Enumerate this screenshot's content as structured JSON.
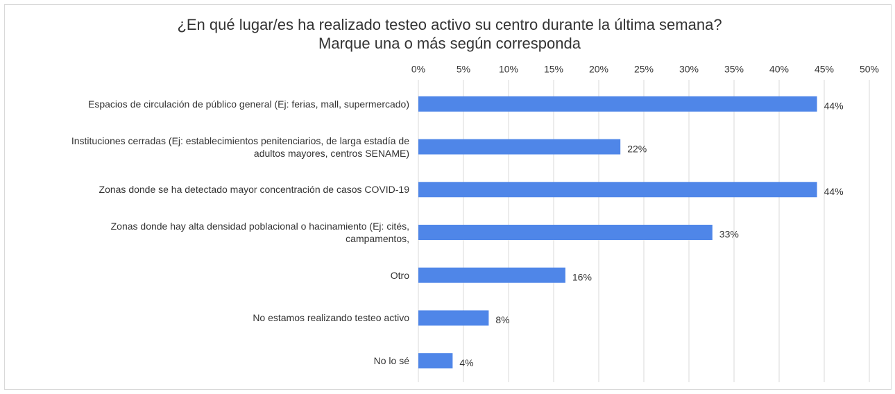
{
  "chart_data": {
    "type": "barh",
    "title": "¿En qué lugar/es ha realizado testeo activo su centro durante la última semana?\nMarque una o más según corresponda",
    "categories": [
      "Espacios de circulación de público general (Ej: ferias, mall, supermercado)",
      "Instituciones cerradas (Ej: establecimientos penitenciarios, de larga estadía de\nadultos mayores, centros SENAME)",
      "Zonas donde se ha detectado mayor concentración de casos COVID-19",
      "Zonas donde hay alta densidad poblacional o hacinamiento (Ej: cités,\ncampamentos,",
      "Otro",
      "No estamos realizando testeo activo",
      "No lo sé"
    ],
    "values": [
      44.2,
      22.4,
      44.2,
      32.6,
      16.3,
      7.8,
      3.8
    ],
    "value_labels": [
      "44%",
      "22%",
      "44%",
      "33%",
      "16%",
      "8%",
      "4%"
    ],
    "color": "#4f86e8",
    "xlim": [
      0,
      50
    ],
    "xticks": [
      {
        "value": 0,
        "label": "0%"
      },
      {
        "value": 5,
        "label": "5%"
      },
      {
        "value": 10,
        "label": "10%"
      },
      {
        "value": 15,
        "label": "15%"
      },
      {
        "value": 20,
        "label": "20%"
      },
      {
        "value": 25,
        "label": "25%"
      },
      {
        "value": 30,
        "label": "30%"
      },
      {
        "value": 35,
        "label": "35%"
      },
      {
        "value": 40,
        "label": "40%"
      },
      {
        "value": 45,
        "label": "45%"
      },
      {
        "value": 50,
        "label": "50%"
      }
    ],
    "grid": true
  }
}
